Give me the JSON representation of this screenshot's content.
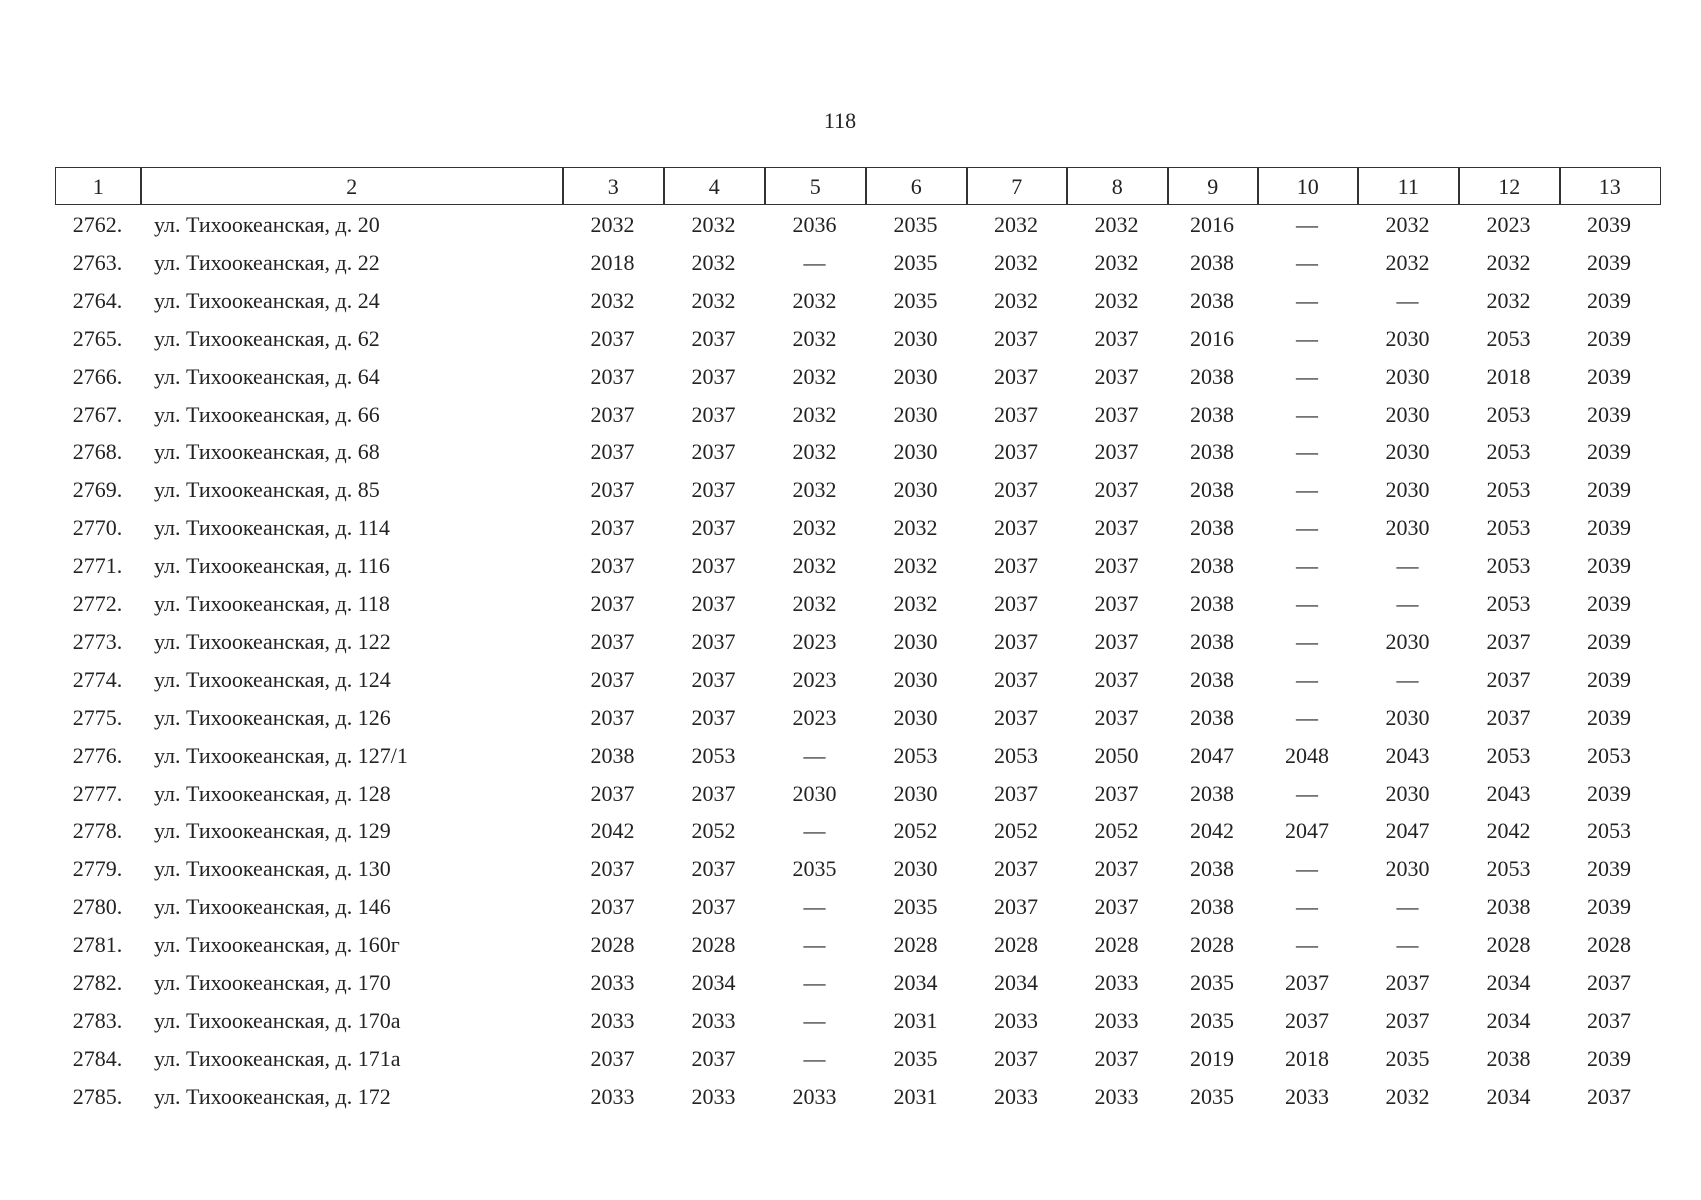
{
  "page_number": "118",
  "table": {
    "header": [
      "1",
      "2",
      "3",
      "4",
      "5",
      "6",
      "7",
      "8",
      "9",
      "10",
      "11",
      "12",
      "13"
    ],
    "rows": [
      [
        "2762.",
        "ул. Тихоокеанская, д. 20",
        "2032",
        "2032",
        "2036",
        "2035",
        "2032",
        "2032",
        "2016",
        "—",
        "2032",
        "2023",
        "2039"
      ],
      [
        "2763.",
        "ул. Тихоокеанская, д. 22",
        "2018",
        "2032",
        "—",
        "2035",
        "2032",
        "2032",
        "2038",
        "—",
        "2032",
        "2032",
        "2039"
      ],
      [
        "2764.",
        "ул. Тихоокеанская, д. 24",
        "2032",
        "2032",
        "2032",
        "2035",
        "2032",
        "2032",
        "2038",
        "—",
        "—",
        "2032",
        "2039"
      ],
      [
        "2765.",
        "ул. Тихоокеанская, д. 62",
        "2037",
        "2037",
        "2032",
        "2030",
        "2037",
        "2037",
        "2016",
        "—",
        "2030",
        "2053",
        "2039"
      ],
      [
        "2766.",
        "ул. Тихоокеанская, д. 64",
        "2037",
        "2037",
        "2032",
        "2030",
        "2037",
        "2037",
        "2038",
        "—",
        "2030",
        "2018",
        "2039"
      ],
      [
        "2767.",
        "ул. Тихоокеанская, д. 66",
        "2037",
        "2037",
        "2032",
        "2030",
        "2037",
        "2037",
        "2038",
        "—",
        "2030",
        "2053",
        "2039"
      ],
      [
        "2768.",
        "ул. Тихоокеанская, д. 68",
        "2037",
        "2037",
        "2032",
        "2030",
        "2037",
        "2037",
        "2038",
        "—",
        "2030",
        "2053",
        "2039"
      ],
      [
        "2769.",
        "ул. Тихоокеанская, д. 85",
        "2037",
        "2037",
        "2032",
        "2030",
        "2037",
        "2037",
        "2038",
        "—",
        "2030",
        "2053",
        "2039"
      ],
      [
        "2770.",
        "ул. Тихоокеанская, д. 114",
        "2037",
        "2037",
        "2032",
        "2032",
        "2037",
        "2037",
        "2038",
        "—",
        "2030",
        "2053",
        "2039"
      ],
      [
        "2771.",
        "ул. Тихоокеанская, д. 116",
        "2037",
        "2037",
        "2032",
        "2032",
        "2037",
        "2037",
        "2038",
        "—",
        "—",
        "2053",
        "2039"
      ],
      [
        "2772.",
        "ул. Тихоокеанская, д. 118",
        "2037",
        "2037",
        "2032",
        "2032",
        "2037",
        "2037",
        "2038",
        "—",
        "—",
        "2053",
        "2039"
      ],
      [
        "2773.",
        "ул. Тихоокеанская, д. 122",
        "2037",
        "2037",
        "2023",
        "2030",
        "2037",
        "2037",
        "2038",
        "—",
        "2030",
        "2037",
        "2039"
      ],
      [
        "2774.",
        "ул. Тихоокеанская, д. 124",
        "2037",
        "2037",
        "2023",
        "2030",
        "2037",
        "2037",
        "2038",
        "—",
        "—",
        "2037",
        "2039"
      ],
      [
        "2775.",
        "ул. Тихоокеанская, д. 126",
        "2037",
        "2037",
        "2023",
        "2030",
        "2037",
        "2037",
        "2038",
        "—",
        "2030",
        "2037",
        "2039"
      ],
      [
        "2776.",
        "ул. Тихоокеанская, д. 127/1",
        "2038",
        "2053",
        "—",
        "2053",
        "2053",
        "2050",
        "2047",
        "2048",
        "2043",
        "2053",
        "2053"
      ],
      [
        "2777.",
        "ул. Тихоокеанская, д. 128",
        "2037",
        "2037",
        "2030",
        "2030",
        "2037",
        "2037",
        "2038",
        "—",
        "2030",
        "2043",
        "2039"
      ],
      [
        "2778.",
        "ул. Тихоокеанская, д. 129",
        "2042",
        "2052",
        "—",
        "2052",
        "2052",
        "2052",
        "2042",
        "2047",
        "2047",
        "2042",
        "2053"
      ],
      [
        "2779.",
        "ул. Тихоокеанская, д. 130",
        "2037",
        "2037",
        "2035",
        "2030",
        "2037",
        "2037",
        "2038",
        "—",
        "2030",
        "2053",
        "2039"
      ],
      [
        "2780.",
        "ул. Тихоокеанская, д. 146",
        "2037",
        "2037",
        "—",
        "2035",
        "2037",
        "2037",
        "2038",
        "—",
        "—",
        "2038",
        "2039"
      ],
      [
        "2781.",
        "ул. Тихоокеанская, д. 160г",
        "2028",
        "2028",
        "—",
        "2028",
        "2028",
        "2028",
        "2028",
        "—",
        "—",
        "2028",
        "2028"
      ],
      [
        "2782.",
        "ул. Тихоокеанская, д. 170",
        "2033",
        "2034",
        "—",
        "2034",
        "2034",
        "2033",
        "2035",
        "2037",
        "2037",
        "2034",
        "2037"
      ],
      [
        "2783.",
        "ул. Тихоокеанская, д. 170а",
        "2033",
        "2033",
        "—",
        "2031",
        "2033",
        "2033",
        "2035",
        "2037",
        "2037",
        "2034",
        "2037"
      ],
      [
        "2784.",
        "ул. Тихоокеанская, д. 171а",
        "2037",
        "2037",
        "—",
        "2035",
        "2037",
        "2037",
        "2019",
        "2018",
        "2035",
        "2038",
        "2039"
      ],
      [
        "2785.",
        "ул. Тихоокеанская, д. 172",
        "2033",
        "2033",
        "2033",
        "2031",
        "2033",
        "2033",
        "2035",
        "2033",
        "2032",
        "2034",
        "2037"
      ]
    ]
  }
}
